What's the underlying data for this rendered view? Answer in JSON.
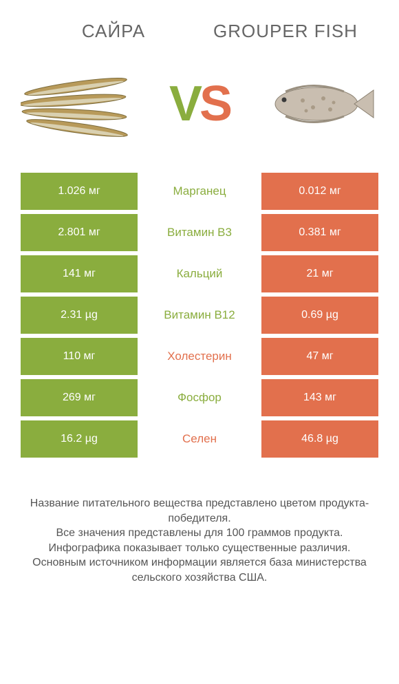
{
  "colors": {
    "left": "#8aad3e",
    "right": "#e2704d",
    "text": "#555555",
    "bg": "#ffffff"
  },
  "header": {
    "left_title": "Сайра",
    "right_title": "Grouper Fish"
  },
  "vs": {
    "v": "V",
    "s": "S"
  },
  "rows": [
    {
      "left": "1.026 мг",
      "label": "Марганец",
      "right": "0.012 мг",
      "winner": "left"
    },
    {
      "left": "2.801 мг",
      "label": "Витамин В3",
      "right": "0.381 мг",
      "winner": "left"
    },
    {
      "left": "141 мг",
      "label": "Кальций",
      "right": "21 мг",
      "winner": "left"
    },
    {
      "left": "2.31 µg",
      "label": "Витамин В12",
      "right": "0.69 µg",
      "winner": "left"
    },
    {
      "left": "110 мг",
      "label": "Холестерин",
      "right": "47 мг",
      "winner": "right"
    },
    {
      "left": "269 мг",
      "label": "Фосфор",
      "right": "143 мг",
      "winner": "left"
    },
    {
      "left": "16.2 µg",
      "label": "Селен",
      "right": "46.8 µg",
      "winner": "right"
    }
  ],
  "footer": {
    "line1": "Название питательного вещества представлено цветом продукта-победителя.",
    "line2": "Все значения представлены для 100 граммов продукта.",
    "line3": "Инфографика показывает только существенные различия.",
    "line4": "Основным источником информации является база министерства сельского хозяйства США."
  },
  "icons": {
    "left": "saury-fish",
    "right": "grouper-fish"
  }
}
